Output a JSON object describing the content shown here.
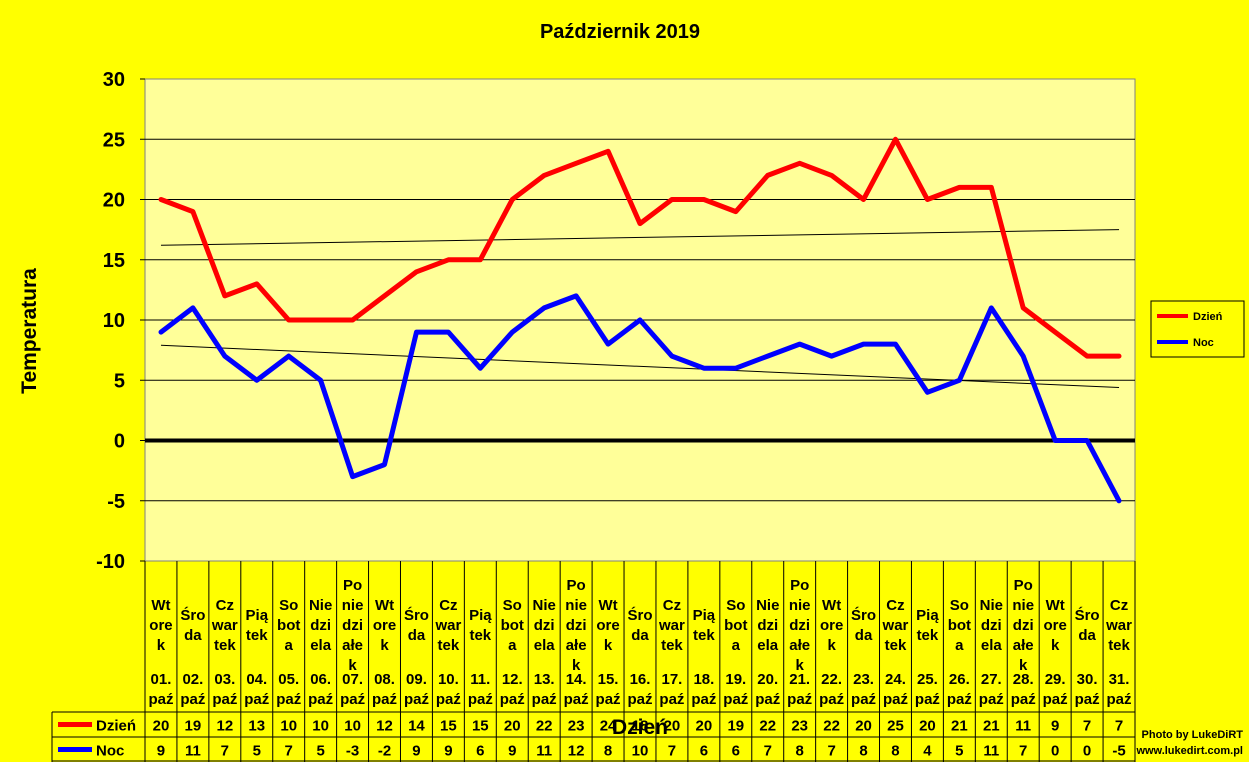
{
  "chart_data": {
    "type": "line",
    "title": "Październik 2019",
    "xlabel": "Dzień",
    "ylabel": "Temperatura",
    "ylim": [
      -10,
      30
    ],
    "yticks": [
      30,
      25,
      20,
      15,
      10,
      5,
      0,
      -5,
      -10
    ],
    "grid": true,
    "legend_position": "right",
    "x_weekdays": [
      "Wtorek",
      "Środa",
      "Czwartek",
      "Piątek",
      "Sobota",
      "Niedziela",
      "Poniedziałek",
      "Wtorek",
      "Środa",
      "Czwartek",
      "Piątek",
      "Sobota",
      "Niedziela",
      "Poniedziałek",
      "Wtorek",
      "Środa",
      "Czwartek",
      "Piątek",
      "Sobota",
      "Niedziela",
      "Poniedziałek",
      "Wtorek",
      "Środa",
      "Czwartek",
      "Piątek",
      "Sobota",
      "Niedziela",
      "Poniedziałek",
      "Wtorek",
      "Środa",
      "Czwartek"
    ],
    "x_weekday_lines": [
      [
        "Wt",
        "ore",
        "k"
      ],
      [
        "Śro",
        "da"
      ],
      [
        "Cz",
        "war",
        "tek"
      ],
      [
        "Pią",
        "tek"
      ],
      [
        "So",
        "bot",
        "a"
      ],
      [
        "Nie",
        "dzi",
        "ela"
      ],
      [
        "Po",
        "nie",
        "dzi",
        "ałe",
        "k"
      ],
      [
        "Wt",
        "ore",
        "k"
      ],
      [
        "Śro",
        "da"
      ],
      [
        "Cz",
        "war",
        "tek"
      ],
      [
        "Pią",
        "tek"
      ],
      [
        "So",
        "bot",
        "a"
      ],
      [
        "Nie",
        "dzi",
        "ela"
      ],
      [
        "Po",
        "nie",
        "dzi",
        "ałe",
        "k"
      ],
      [
        "Wt",
        "ore",
        "k"
      ],
      [
        "Śro",
        "da"
      ],
      [
        "Cz",
        "war",
        "tek"
      ],
      [
        "Pią",
        "tek"
      ],
      [
        "So",
        "bot",
        "a"
      ],
      [
        "Nie",
        "dzi",
        "ela"
      ],
      [
        "Po",
        "nie",
        "dzi",
        "ałe",
        "k"
      ],
      [
        "Wt",
        "ore",
        "k"
      ],
      [
        "Śro",
        "da"
      ],
      [
        "Cz",
        "war",
        "tek"
      ],
      [
        "Pią",
        "tek"
      ],
      [
        "So",
        "bot",
        "a"
      ],
      [
        "Nie",
        "dzi",
        "ela"
      ],
      [
        "Po",
        "nie",
        "dzi",
        "ałe",
        "k"
      ],
      [
        "Wt",
        "ore",
        "k"
      ],
      [
        "Śro",
        "da"
      ],
      [
        "Cz",
        "war",
        "tek"
      ]
    ],
    "x_dates": [
      "01. paź",
      "02. paź",
      "03. paź",
      "04. paź",
      "05. paź",
      "06. paź",
      "07. paź",
      "08. paź",
      "09. paź",
      "10. paź",
      "11. paź",
      "12. paź",
      "13. paź",
      "14. paź",
      "15. paź",
      "16. paź",
      "17. paź",
      "18. paź",
      "19. paź",
      "20. paź",
      "21. paź",
      "22. paź",
      "23. paź",
      "24. paź",
      "25. paź",
      "26. paź",
      "27. paź",
      "28. paź",
      "29. paź",
      "30. paź",
      "31. paź"
    ],
    "series": [
      {
        "name": "Dzień",
        "color": "#FF0000",
        "values": [
          20,
          19,
          12,
          13,
          10,
          10,
          10,
          12,
          14,
          15,
          15,
          20,
          22,
          23,
          24,
          18,
          20,
          20,
          19,
          22,
          23,
          22,
          20,
          25,
          20,
          21,
          21,
          11,
          9,
          7,
          7
        ]
      },
      {
        "name": "Noc",
        "color": "#0000FF",
        "values": [
          9,
          11,
          7,
          5,
          7,
          5,
          -3,
          -2,
          9,
          9,
          6,
          9,
          11,
          12,
          8,
          10,
          7,
          6,
          6,
          7,
          8,
          7,
          8,
          8,
          4,
          5,
          11,
          7,
          0,
          0,
          -5
        ]
      }
    ],
    "trendlines": [
      {
        "series": "Dzień",
        "start": 16.2,
        "end": 17.5
      },
      {
        "series": "Noc",
        "start": 7.9,
        "end": 4.4
      }
    ]
  },
  "credit": {
    "line1": "Photo by LukeDiRT",
    "line2": "www.lukedirt.com.pl"
  }
}
